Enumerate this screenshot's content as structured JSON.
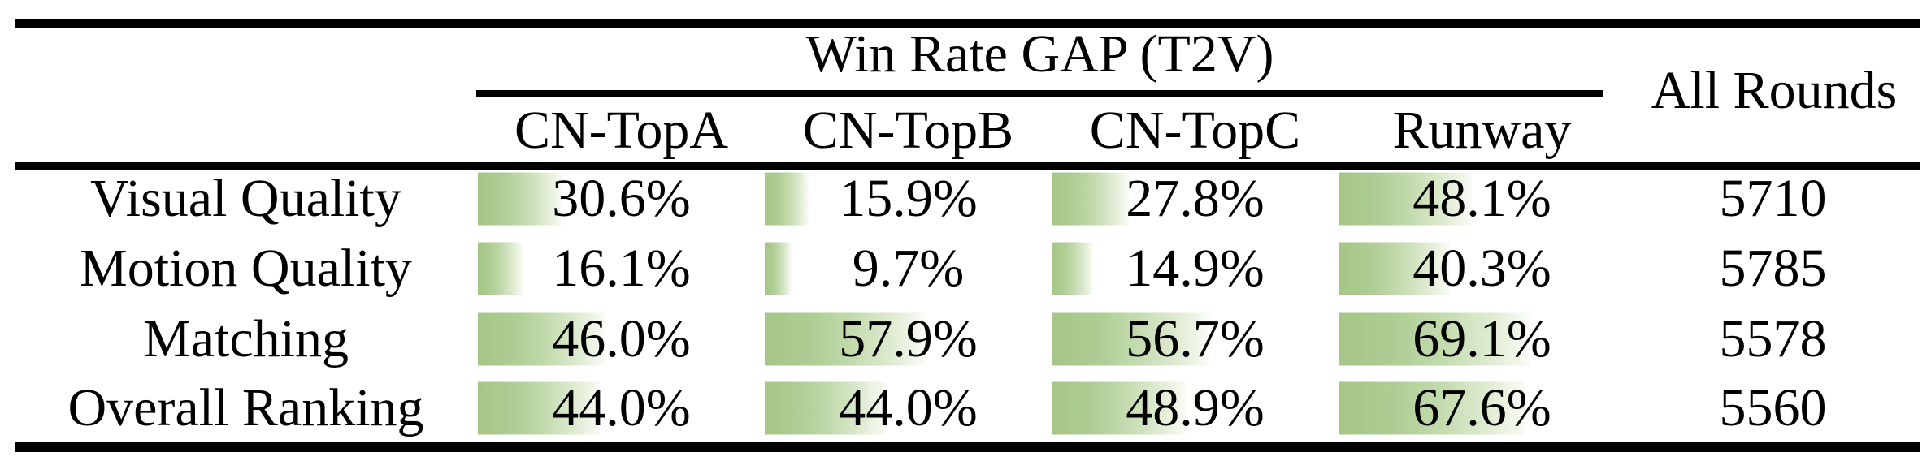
{
  "colors": {
    "bar_green": "#a5c687",
    "rule_black": "#000000",
    "background": "#ffffff"
  },
  "table": {
    "title": "Win Rate GAP (T2V)",
    "all_rounds_header": "All Rounds",
    "columns": [
      "CN-TopA",
      "CN-TopB",
      "CN-TopC",
      "Runway"
    ],
    "rows": [
      {
        "label": "Visual Quality",
        "cells": [
          {
            "pct": 30.6,
            "text": "30.6%"
          },
          {
            "pct": 15.9,
            "text": "15.9%"
          },
          {
            "pct": 27.8,
            "text": "27.8%"
          },
          {
            "pct": 48.1,
            "text": "48.1%"
          }
        ],
        "rounds": "5710"
      },
      {
        "label": "Motion Quality",
        "cells": [
          {
            "pct": 16.1,
            "text": "16.1%"
          },
          {
            "pct": 9.7,
            "text": "9.7%"
          },
          {
            "pct": 14.9,
            "text": "14.9%"
          },
          {
            "pct": 40.3,
            "text": "40.3%"
          }
        ],
        "rounds": "5785"
      },
      {
        "label": "Matching",
        "cells": [
          {
            "pct": 46.0,
            "text": "46.0%"
          },
          {
            "pct": 57.9,
            "text": "57.9%"
          },
          {
            "pct": 56.7,
            "text": "56.7%"
          },
          {
            "pct": 69.1,
            "text": "69.1%"
          }
        ],
        "rounds": "5578"
      },
      {
        "label": "Overall Ranking",
        "cells": [
          {
            "pct": 44.0,
            "text": "44.0%"
          },
          {
            "pct": 44.0,
            "text": "44.0%"
          },
          {
            "pct": 48.9,
            "text": "48.9%"
          },
          {
            "pct": 67.6,
            "text": "67.6%"
          }
        ],
        "rounds": "5560"
      }
    ]
  }
}
